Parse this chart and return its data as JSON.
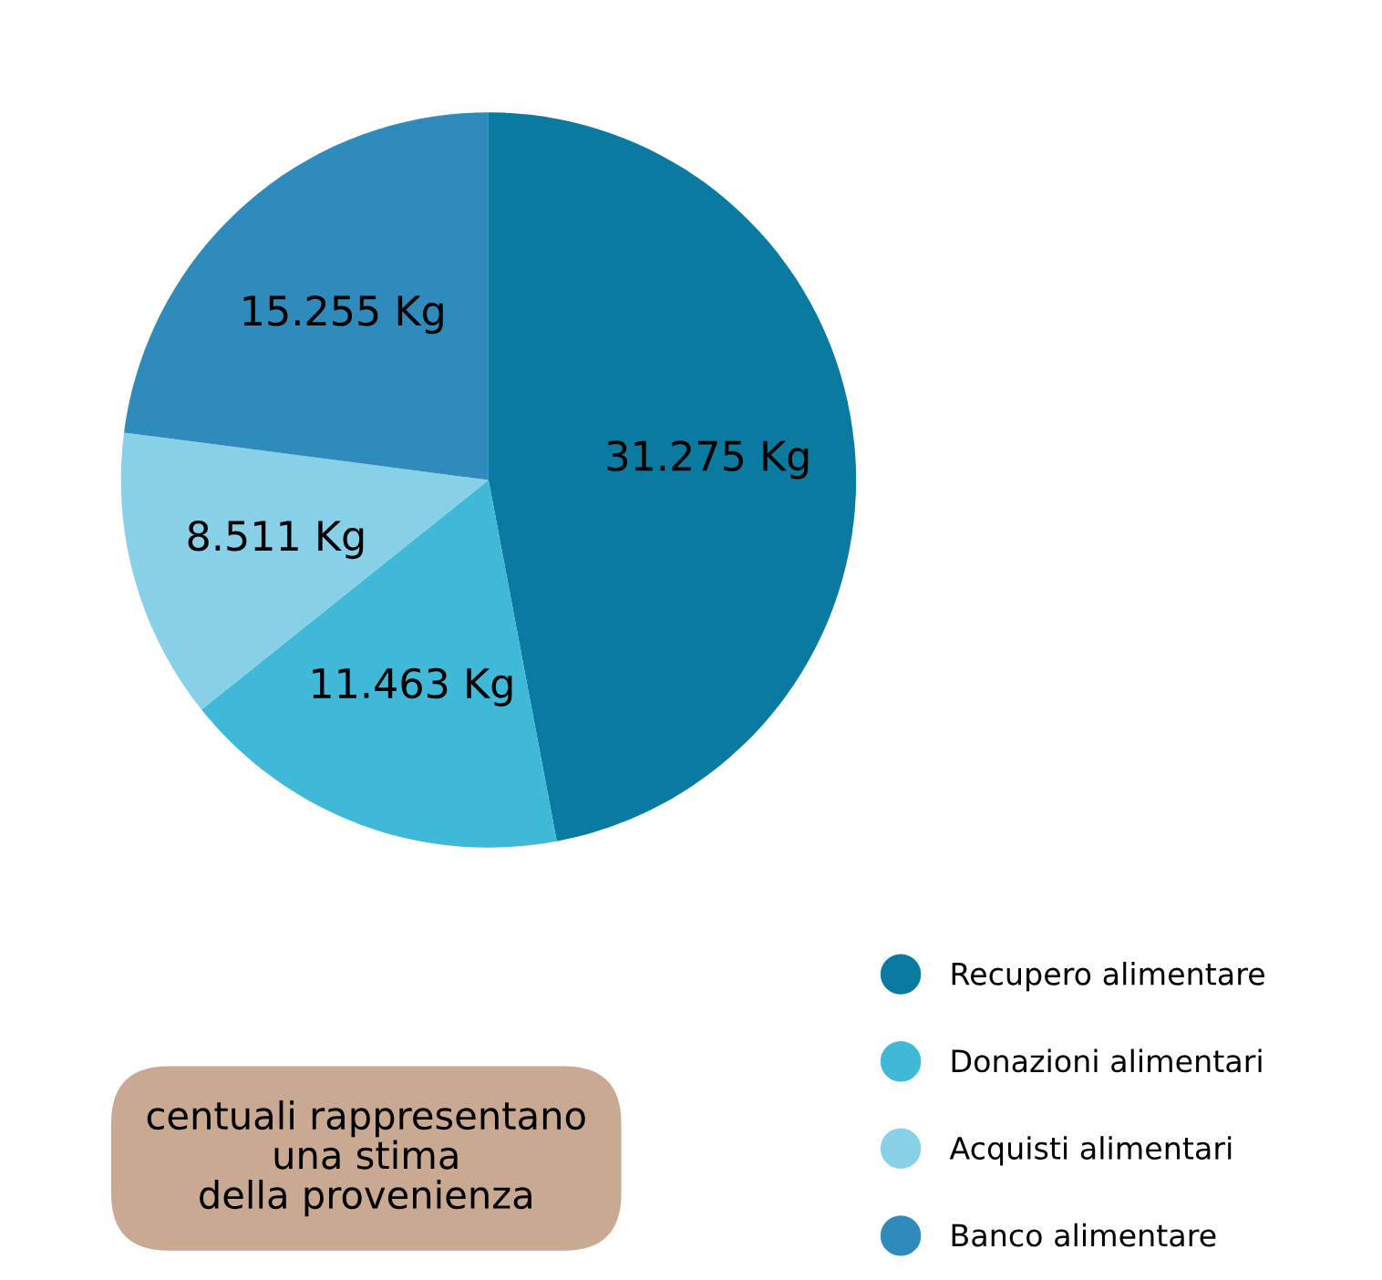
{
  "chart_data": {
    "type": "pie",
    "categories": [
      "Recupero alimentare",
      "Donazioni alimentari",
      "Acquisti alimentari",
      "Banco alimentare"
    ],
    "values": [
      31275,
      11463,
      8511,
      15255
    ],
    "value_labels": [
      "31.275 Kg",
      "11.463 Kg",
      "8.511 Kg",
      "15.255 Kg"
    ],
    "colors": [
      "#0a7aa0",
      "#40b8d8",
      "#88d0e8",
      "#2e8bbb"
    ],
    "legend": "bottom right",
    "annotations": [
      "centuali rappresentano\nuna stima\ndella provenienza"
    ]
  }
}
